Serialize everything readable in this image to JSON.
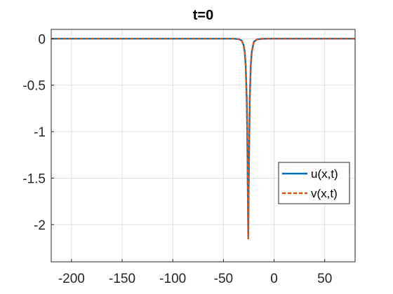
{
  "chart_data": {
    "type": "line",
    "title": "t=0",
    "xlabel": "",
    "ylabel": "",
    "xlim": [
      -220,
      80
    ],
    "ylim": [
      -2.4,
      0.1
    ],
    "xticks": [
      -200,
      -150,
      -100,
      -50,
      0,
      50
    ],
    "xtick_labels": [
      "-200",
      "-150",
      "-100",
      "-50",
      "0",
      "50"
    ],
    "yticks": [
      0,
      -0.5,
      -1,
      -1.5,
      -2
    ],
    "ytick_labels": [
      "0",
      "-0.5",
      "-1",
      "-1.5",
      "-2"
    ],
    "grid": true,
    "legend_position": "right",
    "series": [
      {
        "name": "u(x,t)",
        "color": "#0072BD",
        "style": "solid",
        "x": [
          -220,
          -40,
          -35,
          -32,
          -30,
          -29,
          -28,
          -27,
          -26.5,
          -26,
          -25.5,
          -25,
          -24,
          -23,
          -22,
          -20,
          -17,
          -12,
          0,
          80
        ],
        "y": [
          0,
          0,
          -0.004,
          -0.02,
          -0.07,
          -0.14,
          -0.29,
          -0.65,
          -1.0,
          -1.55,
          -2.15,
          -1.55,
          -0.65,
          -0.29,
          -0.14,
          -0.035,
          -0.008,
          -0.001,
          0,
          0
        ]
      },
      {
        "name": "v(x,t)",
        "color": "#D95319",
        "style": "dashed",
        "x": [
          -220,
          -40,
          -35,
          -32,
          -30,
          -29,
          -28,
          -27,
          -26.5,
          -26,
          -25.5,
          -25,
          -24,
          -23,
          -22,
          -20,
          -17,
          -12,
          0,
          80
        ],
        "y": [
          0,
          0,
          -0.004,
          -0.02,
          -0.07,
          -0.14,
          -0.29,
          -0.65,
          -1.0,
          -1.55,
          -2.15,
          -1.55,
          -0.65,
          -0.29,
          -0.14,
          -0.035,
          -0.008,
          -0.001,
          0,
          0
        ]
      }
    ]
  }
}
